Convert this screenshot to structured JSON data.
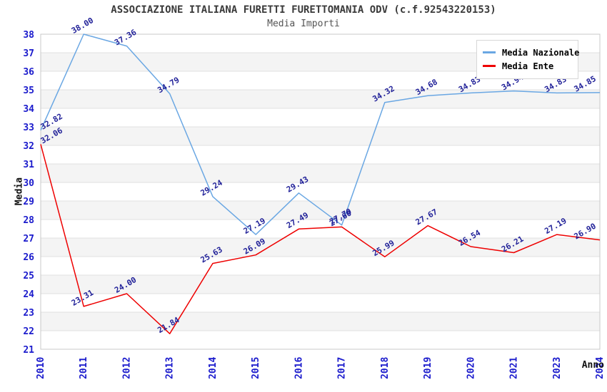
{
  "chart_data": {
    "type": "line",
    "title": "ASSOCIAZIONE ITALIANA FURETTI FURETTOMANIA ODV (c.f.92543220153)",
    "subtitle": "Media Importi",
    "xlabel": "Anno",
    "ylabel": "Media",
    "categories": [
      "2010",
      "2011",
      "2012",
      "2013",
      "2014",
      "2015",
      "2016",
      "2017",
      "2018",
      "2019",
      "2020",
      "2021",
      "2023",
      "2024"
    ],
    "series": [
      {
        "name": "Media Nazionale",
        "color": "#6aa7e3",
        "values": [
          32.82,
          38.0,
          37.36,
          34.79,
          29.24,
          27.19,
          29.43,
          27.7,
          34.32,
          34.68,
          34.83,
          34.94,
          34.83,
          34.85
        ]
      },
      {
        "name": "Media Ente",
        "color": "#ee0000",
        "values": [
          32.06,
          23.31,
          24.0,
          21.84,
          25.63,
          26.09,
          27.49,
          27.6,
          25.99,
          27.67,
          26.54,
          26.21,
          27.19,
          26.9
        ]
      }
    ],
    "ylim": [
      21,
      38
    ],
    "y_tick_step": 1,
    "grid": "horizontal-bands",
    "legend_position": "top-right",
    "colors": {
      "tick_label": "#1a1acc",
      "data_label": "#222299",
      "band_fill": "#f4f4f4",
      "grid_line": "#e0e0e0",
      "plot_border": "#c8c8c8"
    }
  }
}
